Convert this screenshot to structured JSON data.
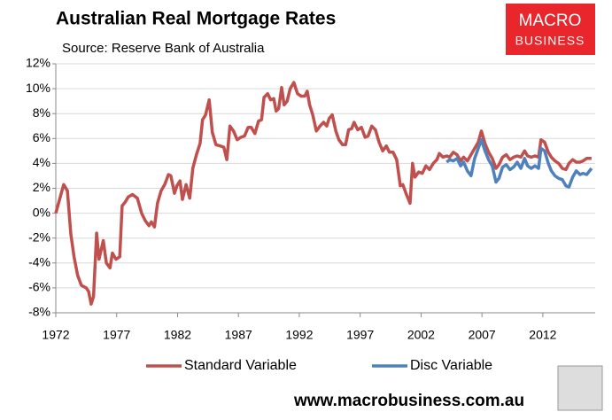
{
  "chart_data": {
    "type": "line",
    "title": "Australian Real Mortgage Rates",
    "subtitle": "Source: Reserve Bank of Australia",
    "logo_top": "MACRO",
    "logo_bottom": "BUSINESS",
    "footer": "www.macrobusiness.com.au",
    "xlim": [
      1972,
      2016.3
    ],
    "xticks": [
      1972,
      1977,
      1982,
      1987,
      1992,
      1997,
      2002,
      2007,
      2012
    ],
    "ylim": [
      -8,
      12
    ],
    "yticks": [
      {
        "value": -8,
        "label": "-8%"
      },
      {
        "value": -6,
        "label": "-6%"
      },
      {
        "value": -4,
        "label": "-4%"
      },
      {
        "value": -2,
        "label": "-2%"
      },
      {
        "value": 0,
        "label": "0%"
      },
      {
        "value": 2,
        "label": "2%"
      },
      {
        "value": 4,
        "label": "4%"
      },
      {
        "value": 6,
        "label": "6%"
      },
      {
        "value": 8,
        "label": "8%"
      },
      {
        "value": 10,
        "label": "10%"
      },
      {
        "value": 12,
        "label": "12%"
      }
    ],
    "grid": true,
    "legend": "bottom",
    "series": [
      {
        "name": "Standard Variable",
        "color": "#c0504d",
        "x": [
          1972.0,
          1972.65,
          1972.95,
          1973.24,
          1973.5,
          1973.8,
          1974.1,
          1974.5,
          1974.7,
          1974.9,
          1975.1,
          1975.35,
          1975.55,
          1975.9,
          1976.15,
          1976.45,
          1976.65,
          1976.95,
          1977.25,
          1977.45,
          1977.7,
          1977.95,
          1978.3,
          1978.7,
          1979.05,
          1979.35,
          1979.65,
          1979.85,
          1980.1,
          1980.35,
          1980.65,
          1980.95,
          1981.25,
          1981.45,
          1981.75,
          1981.95,
          1982.2,
          1982.4,
          1982.7,
          1983.0,
          1983.25,
          1983.55,
          1983.85,
          1984.05,
          1984.3,
          1984.6,
          1984.85,
          1985.15,
          1985.5,
          1985.8,
          1986.05,
          1986.3,
          1986.6,
          1986.9,
          1987.2,
          1987.5,
          1987.8,
          1988.05,
          1988.35,
          1988.65,
          1988.9,
          1989.1,
          1989.4,
          1989.65,
          1989.9,
          1990.1,
          1990.3,
          1990.55,
          1990.75,
          1991.0,
          1991.25,
          1991.55,
          1991.85,
          1992.15,
          1992.45,
          1992.65,
          1992.85,
          1993.1,
          1993.4,
          1993.7,
          1994.0,
          1994.25,
          1994.45,
          1994.7,
          1995.0,
          1995.25,
          1995.55,
          1995.8,
          1996.05,
          1996.3,
          1996.5,
          1996.8,
          1997.1,
          1997.4,
          1997.65,
          1997.95,
          1998.25,
          1998.55,
          1998.85,
          1999.15,
          1999.4,
          1999.7,
          2000.0,
          2000.3,
          2000.5,
          2000.8,
          2001.1,
          2001.3,
          2001.5,
          2001.8,
          2002.1,
          2002.4,
          2002.7,
          2003.0,
          2003.3,
          2003.5,
          2003.8,
          2004.1,
          2004.35,
          2004.65,
          2004.95,
          2005.25,
          2005.5,
          2005.8,
          2006.1,
          2006.4,
          2006.7,
          2006.95,
          2007.25,
          2007.55,
          2007.85,
          2008.15,
          2008.4,
          2008.7,
          2009.0,
          2009.3,
          2009.6,
          2009.9,
          2010.2,
          2010.5,
          2010.75,
          2011.05,
          2011.35,
          2011.65,
          2011.85,
          2012.15,
          2012.45,
          2012.7,
          2013.0,
          2013.3,
          2013.6,
          2013.9,
          2014.15,
          2014.45,
          2014.75,
          2015.05,
          2015.3,
          2015.6,
          2016.0
        ],
        "values": [
          0.0,
          2.3,
          1.8,
          -1.7,
          -3.5,
          -5.0,
          -5.8,
          -6.0,
          -6.3,
          -7.3,
          -6.7,
          -1.6,
          -3.7,
          -2.2,
          -4.0,
          -4.4,
          -3.2,
          -3.7,
          -3.5,
          0.6,
          0.9,
          1.3,
          1.5,
          1.2,
          0.0,
          -0.6,
          -1.0,
          -0.7,
          -1.1,
          0.8,
          1.8,
          2.3,
          3.1,
          3.0,
          1.6,
          2.2,
          2.6,
          1.1,
          2.3,
          1.2,
          3.6,
          4.7,
          5.6,
          7.5,
          7.9,
          9.1,
          6.5,
          5.5,
          5.4,
          5.3,
          4.3,
          7.0,
          6.6,
          5.9,
          6.1,
          6.2,
          6.9,
          6.9,
          6.4,
          7.4,
          7.5,
          9.3,
          9.6,
          9.1,
          9.2,
          8.2,
          8.4,
          10.1,
          8.7,
          9.0,
          10.0,
          10.5,
          9.6,
          9.4,
          9.4,
          9.8,
          8.7,
          7.9,
          6.6,
          7.0,
          7.3,
          7.0,
          7.6,
          7.9,
          6.6,
          5.9,
          5.5,
          5.5,
          6.7,
          6.8,
          7.3,
          6.7,
          6.9,
          6.1,
          6.2,
          7.0,
          6.7,
          5.7,
          5.0,
          5.4,
          4.9,
          4.9,
          4.3,
          2.2,
          2.3,
          1.5,
          0.8,
          4.0,
          2.9,
          3.3,
          3.2,
          3.8,
          3.5,
          4.0,
          4.3,
          4.8,
          4.5,
          4.6,
          4.5,
          4.9,
          4.7,
          4.2,
          4.5,
          4.2,
          4.7,
          5.2,
          5.7,
          6.6,
          5.6,
          4.9,
          4.4,
          3.6,
          3.9,
          4.5,
          4.7,
          4.3,
          4.5,
          4.6,
          4.5,
          5.0,
          4.6,
          4.5,
          4.6,
          4.5,
          5.9,
          5.7,
          4.9,
          4.5,
          4.2,
          4.0,
          3.6,
          3.5,
          4.0,
          4.3,
          4.1,
          4.1,
          4.2,
          4.4,
          4.4
        ]
      },
      {
        "name": "Disc Variable",
        "color": "#4f81bd",
        "x": [
          2004.1,
          2004.35,
          2004.65,
          2004.95,
          2005.25,
          2005.5,
          2005.8,
          2006.1,
          2006.4,
          2006.7,
          2006.95,
          2007.25,
          2007.55,
          2007.85,
          2008.15,
          2008.4,
          2008.7,
          2009.0,
          2009.3,
          2009.6,
          2009.9,
          2010.2,
          2010.5,
          2010.75,
          2011.05,
          2011.35,
          2011.65,
          2011.85,
          2012.15,
          2012.45,
          2012.7,
          2013.0,
          2013.3,
          2013.6,
          2013.9,
          2014.15,
          2014.45,
          2014.75,
          2015.05,
          2015.3,
          2015.6,
          2016.0
        ],
        "values": [
          4.1,
          4.3,
          4.2,
          4.4,
          3.8,
          4.1,
          3.4,
          3.0,
          4.4,
          5.2,
          5.9,
          5.0,
          4.3,
          3.8,
          2.5,
          2.8,
          3.7,
          3.9,
          3.5,
          3.7,
          4.1,
          3.6,
          4.4,
          3.8,
          3.6,
          3.8,
          3.6,
          5.2,
          5.0,
          4.0,
          3.4,
          3.0,
          2.8,
          2.7,
          2.2,
          2.1,
          2.9,
          3.4,
          3.1,
          3.2,
          3.1,
          3.6
        ]
      }
    ]
  }
}
